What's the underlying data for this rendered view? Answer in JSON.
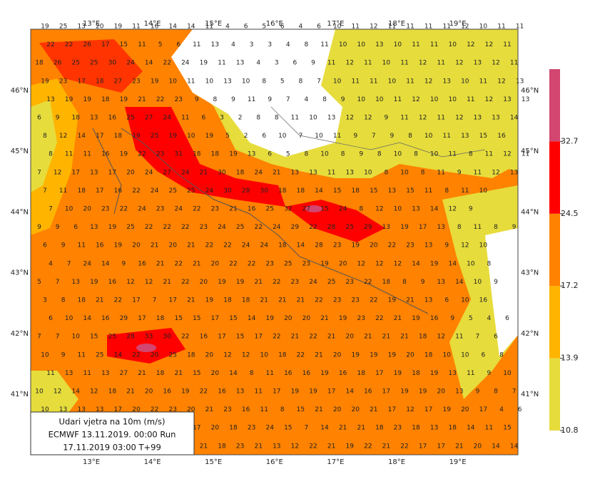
{
  "map": {
    "title_box": [
      "Udari vjetra na 10m (m/s)",
      "ECMWF 13.11.2019.  00:00 Run",
      "17.11.2019 03:00  T+99"
    ],
    "longitudes": [
      "13°E",
      "14°E",
      "15°E",
      "16°E",
      "17°E",
      "18°E",
      "19°E"
    ],
    "latitudes": [
      "46°N",
      "45°N",
      "44°N",
      "43°N",
      "42°N",
      "41°N"
    ],
    "colorbar": {
      "ticks": [
        10.8,
        13.9,
        17.2,
        24.5,
        32.7
      ],
      "colors": [
        "#e6dc3c",
        "#ffb400",
        "#ff8200",
        "#ff0000",
        "#d24670"
      ]
    },
    "grid_labels": [
      [
        19,
        25,
        13,
        20,
        19,
        11,
        16,
        14,
        14,
        11,
        4,
        6,
        5,
        6,
        4,
        6,
        10,
        11,
        12,
        11,
        11,
        11,
        11,
        12,
        10,
        11,
        11
      ],
      [
        22,
        22,
        26,
        17,
        15,
        11,
        5,
        6,
        11,
        13,
        4,
        3,
        3,
        4,
        8,
        11,
        10,
        10,
        13,
        10,
        11,
        11,
        10,
        12,
        12,
        11
      ],
      [
        18,
        26,
        25,
        25,
        30,
        24,
        14,
        22,
        24,
        19,
        11,
        13,
        4,
        3,
        6,
        9,
        11,
        12,
        11,
        10,
        11,
        12,
        11,
        12,
        13,
        12,
        11
      ],
      [
        19,
        23,
        17,
        18,
        27,
        23,
        19,
        10,
        11,
        10,
        13,
        10,
        8,
        5,
        8,
        7,
        10,
        11,
        11,
        10,
        11,
        12,
        13,
        10,
        11,
        12,
        13
      ],
      [
        13,
        19,
        19,
        18,
        19,
        21,
        22,
        23,
        9,
        8,
        9,
        11,
        9,
        7,
        4,
        8,
        9,
        10,
        10,
        11,
        12,
        10,
        10,
        11,
        12,
        13,
        13
      ],
      [
        6,
        9,
        18,
        13,
        16,
        25,
        27,
        24,
        11,
        6,
        3,
        2,
        8,
        8,
        11,
        10,
        13,
        12,
        12,
        9,
        11,
        12,
        11,
        12,
        13,
        13,
        14
      ],
      [
        8,
        12,
        14,
        17,
        18,
        19,
        25,
        19,
        10,
        19,
        5,
        2,
        6,
        10,
        7,
        10,
        11,
        9,
        7,
        9,
        8,
        10,
        11,
        13,
        15,
        16
      ],
      [
        8,
        11,
        11,
        16,
        19,
        22,
        23,
        31,
        18,
        18,
        19,
        13,
        6,
        5,
        8,
        10,
        8,
        9,
        8,
        10,
        8,
        10,
        11,
        8,
        11,
        12,
        11
      ],
      [
        7,
        12,
        17,
        13,
        17,
        20,
        24,
        27,
        24,
        21,
        30,
        18,
        24,
        21,
        13,
        13,
        11,
        13,
        10,
        8,
        10,
        8,
        11,
        9,
        11,
        12,
        13
      ],
      [
        7,
        11,
        18,
        17,
        16,
        22,
        24,
        25,
        25,
        24,
        30,
        28,
        30,
        18,
        18,
        14,
        15,
        18,
        15,
        13,
        15,
        11,
        8,
        11,
        10
      ],
      [
        7,
        10,
        20,
        23,
        22,
        24,
        23,
        24,
        22,
        23,
        21,
        16,
        25,
        32,
        27,
        15,
        24,
        8,
        12,
        10,
        13,
        14,
        12,
        9
      ],
      [
        9,
        9,
        6,
        13,
        19,
        25,
        22,
        22,
        22,
        23,
        24,
        25,
        22,
        24,
        29,
        22,
        28,
        25,
        29,
        13,
        19,
        17,
        13,
        8,
        11,
        8,
        9
      ],
      [
        6,
        9,
        11,
        16,
        19,
        20,
        21,
        20,
        21,
        22,
        22,
        24,
        24,
        18,
        14,
        28,
        23,
        19,
        20,
        22,
        23,
        13,
        9,
        12,
        10
      ],
      [
        4,
        7,
        24,
        14,
        9,
        16,
        21,
        22,
        21,
        20,
        22,
        22,
        23,
        25,
        23,
        19,
        20,
        12,
        12,
        12,
        14,
        19,
        14,
        10,
        8
      ],
      [
        5,
        7,
        13,
        19,
        16,
        12,
        12,
        21,
        22,
        20,
        19,
        19,
        21,
        22,
        23,
        24,
        25,
        23,
        22,
        18,
        8,
        9,
        13,
        14,
        10,
        9
      ],
      [
        3,
        8,
        18,
        21,
        22,
        17,
        7,
        17,
        21,
        19,
        18,
        18,
        21,
        21,
        21,
        22,
        23,
        23,
        22,
        19,
        21,
        13,
        6,
        10,
        16
      ],
      [
        6,
        10,
        14,
        16,
        29,
        17,
        18,
        15,
        15,
        17,
        15,
        14,
        19,
        20,
        20,
        21,
        19,
        23,
        22,
        21,
        19,
        16,
        9,
        5,
        4,
        6
      ],
      [
        7,
        7,
        10,
        15,
        25,
        28,
        33,
        30,
        22,
        16,
        17,
        15,
        17,
        22,
        21,
        22,
        21,
        20,
        21,
        21,
        21,
        18,
        12,
        11,
        7,
        6
      ],
      [
        10,
        9,
        11,
        25,
        14,
        22,
        20,
        25,
        18,
        20,
        12,
        12,
        10,
        18,
        22,
        21,
        20,
        19,
        19,
        19,
        20,
        18,
        10,
        10,
        6,
        8
      ],
      [
        11,
        13,
        11,
        13,
        27,
        21,
        18,
        21,
        15,
        20,
        14,
        8,
        11,
        16,
        16,
        19,
        16,
        18,
        17,
        19,
        18,
        19,
        13,
        11,
        9,
        10
      ],
      [
        10,
        12,
        14,
        12,
        18,
        21,
        20,
        16,
        19,
        22,
        16,
        13,
        11,
        17,
        19,
        19,
        17,
        14,
        16,
        17,
        19,
        19,
        20,
        13,
        9,
        8,
        7
      ],
      [
        10,
        13,
        13,
        13,
        17,
        20,
        22,
        23,
        20,
        21,
        23,
        16,
        11,
        8,
        15,
        21,
        20,
        20,
        21,
        17,
        12,
        17,
        19,
        20,
        17,
        4,
        6
      ],
      [
        null,
        null,
        null,
        null,
        null,
        null,
        null,
        null,
        17,
        20,
        18,
        23,
        24,
        15,
        7,
        14,
        21,
        21,
        18,
        23,
        18,
        13,
        18,
        14,
        11,
        15
      ],
      [
        null,
        null,
        null,
        null,
        null,
        null,
        null,
        null,
        null,
        21,
        18,
        23,
        21,
        13,
        12,
        22,
        21,
        19,
        22,
        21,
        22,
        17,
        17,
        21,
        20,
        14,
        14
      ]
    ]
  }
}
